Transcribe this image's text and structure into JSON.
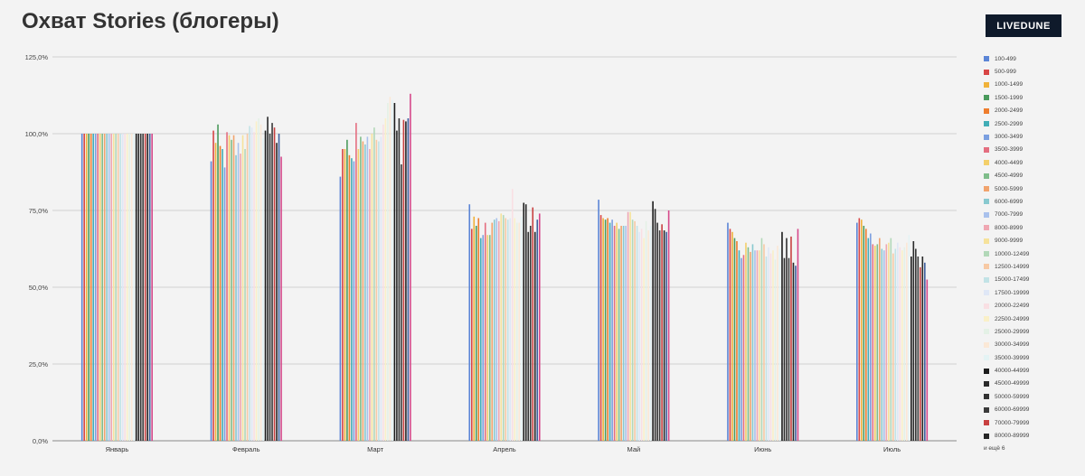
{
  "brand": "LIVEDUNE",
  "legend_more": "и ещё 6",
  "chart_data": {
    "type": "bar",
    "title": "Охват Stories (блогеры)",
    "xlabel": "",
    "ylabel": "",
    "ylim": [
      0,
      125
    ],
    "yticks": [
      0,
      25,
      50,
      75,
      100,
      125
    ],
    "ytick_labels": [
      "0,0%",
      "25,0%",
      "50,0%",
      "75,0%",
      "100,0%",
      "125,0%"
    ],
    "grid": true,
    "legend_position": "right",
    "categories": [
      "Январь",
      "Февраль",
      "Март",
      "Апрель",
      "Май",
      "Июнь",
      "Июль"
    ],
    "series": [
      {
        "name": "100-499",
        "color": "#5b85d6",
        "values": [
          100,
          91,
          86,
          77,
          78.5,
          71,
          71
        ]
      },
      {
        "name": "500-999",
        "color": "#d84545",
        "values": [
          100,
          101,
          95,
          69,
          73.5,
          69,
          72.5
        ]
      },
      {
        "name": "1000-1499",
        "color": "#f0b23a",
        "values": [
          100,
          97,
          95,
          73,
          72.5,
          68,
          72
        ]
      },
      {
        "name": "1500-1999",
        "color": "#4a9a5c",
        "values": [
          100,
          103,
          98,
          70,
          72,
          66,
          70
        ]
      },
      {
        "name": "2000-2499",
        "color": "#ee7d2d",
        "values": [
          100,
          96,
          93,
          72.5,
          72.5,
          65,
          69
        ]
      },
      {
        "name": "2500-2999",
        "color": "#41adb6",
        "values": [
          100,
          95,
          92,
          66,
          71,
          62,
          66
        ]
      },
      {
        "name": "3000-3499",
        "color": "#7b9fe0",
        "values": [
          100,
          89,
          91,
          67,
          72,
          59.5,
          67.5
        ]
      },
      {
        "name": "3500-3999",
        "color": "#e46e80",
        "values": [
          100,
          100.5,
          103.5,
          71,
          70,
          60.5,
          64
        ]
      },
      {
        "name": "4000-4499",
        "color": "#f3cf6a",
        "values": [
          100,
          99.5,
          95,
          67,
          71,
          64.5,
          63.5
        ]
      },
      {
        "name": "4500-4999",
        "color": "#7fbd8a",
        "values": [
          100,
          98,
          99,
          67,
          69,
          63,
          64
        ]
      },
      {
        "name": "5000-5999",
        "color": "#f1a36d",
        "values": [
          100,
          99.5,
          97.5,
          71,
          70,
          61.5,
          66
        ]
      },
      {
        "name": "6000-6999",
        "color": "#88c9cf",
        "values": [
          100,
          93,
          96.5,
          72,
          70,
          64,
          62.5
        ]
      },
      {
        "name": "7000-7999",
        "color": "#a9c1ec",
        "values": [
          100,
          97,
          99,
          72.5,
          70,
          62,
          62
        ]
      },
      {
        "name": "8000-8999",
        "color": "#efa7b2",
        "values": [
          100,
          93.5,
          95,
          71.5,
          74.5,
          62,
          64
        ]
      },
      {
        "name": "9000-9999",
        "color": "#f6e29b",
        "values": [
          100,
          99.5,
          100,
          74,
          74.5,
          62,
          64.5
        ]
      },
      {
        "name": "10000-12499",
        "color": "#b2d8b8",
        "values": [
          100,
          95,
          102,
          73.5,
          72,
          66,
          66
        ]
      },
      {
        "name": "12500-14999",
        "color": "#f7c9a4",
        "values": [
          100,
          100,
          98,
          72.5,
          71.5,
          64,
          61
        ]
      },
      {
        "name": "15000-17499",
        "color": "#c2e3e6",
        "values": [
          100,
          102.5,
          97.5,
          72,
          70,
          60,
          62.5
        ]
      },
      {
        "name": "17500-19999",
        "color": "#dfe7f6",
        "values": [
          100,
          102,
          99,
          72.5,
          68,
          63,
          64.5
        ]
      },
      {
        "name": "20000-22499",
        "color": "#f9dfe3",
        "values": [
          100,
          100.5,
          103,
          82,
          69,
          61,
          63
        ]
      },
      {
        "name": "22500-24999",
        "color": "#faf0c8",
        "values": [
          100,
          104,
          105,
          72.5,
          66,
          62,
          62
        ]
      },
      {
        "name": "25000-29999",
        "color": "#e4f1e6",
        "values": [
          100,
          105,
          110,
          71,
          71.5,
          59,
          63
        ]
      },
      {
        "name": "30000-34999",
        "color": "#fbe8d6",
        "values": [
          100,
          103,
          112,
          71,
          68.5,
          63.5,
          64.5
        ]
      },
      {
        "name": "35000-39999",
        "color": "#e4f3f4",
        "values": [
          100,
          98.5,
          111,
          73,
          70,
          62.5,
          67
        ]
      },
      {
        "name": "40000-44999",
        "color": "#1c1c1c",
        "values": [
          100,
          101,
          110,
          77.5,
          78,
          68,
          60
        ]
      },
      {
        "name": "45000-49999",
        "color": "#2a2a2a",
        "values": [
          100,
          105.5,
          101,
          77,
          75.5,
          59.5,
          65
        ]
      },
      {
        "name": "50000-59999",
        "color": "#333333",
        "values": [
          100,
          100,
          105,
          68,
          71,
          66,
          62.5
        ]
      },
      {
        "name": "60000-69999",
        "color": "#3a3a3a",
        "values": [
          100,
          103.5,
          90,
          70,
          68.5,
          59.5,
          60
        ]
      },
      {
        "name": "70000-79999",
        "color": "#c84040",
        "values": [
          100,
          102,
          104.5,
          76,
          70.5,
          66.5,
          56.5
        ]
      },
      {
        "name": "80000-89999",
        "color": "#262626",
        "values": [
          100,
          97,
          104,
          68,
          68.5,
          58,
          60
        ]
      },
      {
        "name": "",
        "color": "#3f5f9e",
        "values": [
          100,
          100,
          105,
          72,
          68,
          57,
          58
        ]
      },
      {
        "name": "",
        "color": "#d6488a",
        "values": [
          100,
          92.5,
          113,
          74,
          75,
          69,
          52.5
        ]
      }
    ]
  }
}
